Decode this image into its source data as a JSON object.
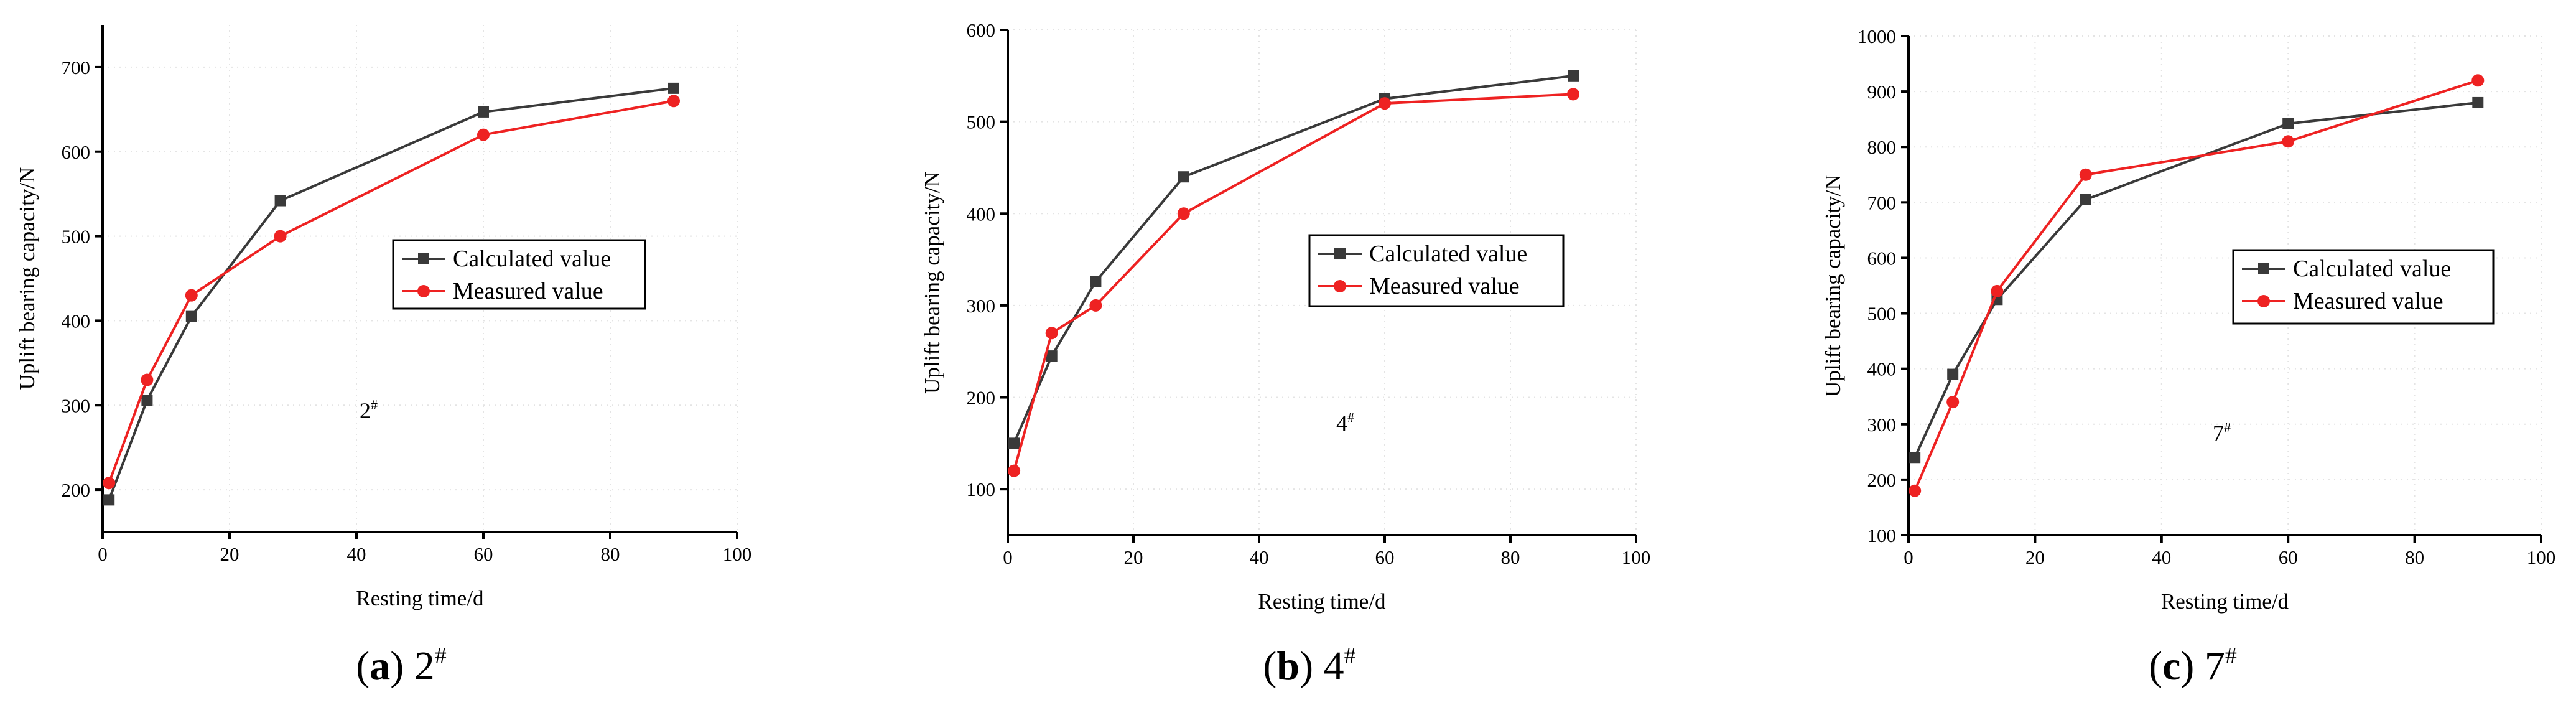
{
  "colors": {
    "calculated": "#3a3a3a",
    "measured": "#ee2222"
  },
  "chart_data": [
    {
      "type": "line",
      "caption_letter": "a",
      "caption_title": "2",
      "caption_sup": "#",
      "annotation": "2",
      "annotation_sup": "#",
      "xlabel": "Resting time/d",
      "ylabel": "Uplift bearing capacity/N",
      "xlim": [
        0,
        100
      ],
      "ylim": [
        150,
        750
      ],
      "xticks": [
        0,
        20,
        40,
        60,
        80,
        100
      ],
      "yticks": [
        200,
        300,
        400,
        500,
        600,
        700
      ],
      "grid": true,
      "legend_position": "center",
      "series": [
        {
          "name": "Calculated value",
          "color_key": "calculated",
          "marker": "square",
          "x": [
            1,
            7,
            14,
            28,
            60,
            90
          ],
          "y": [
            188,
            306,
            405,
            542,
            647,
            675
          ]
        },
        {
          "name": "Measured value",
          "color_key": "measured",
          "marker": "circle",
          "x": [
            1,
            7,
            14,
            28,
            60,
            90
          ],
          "y": [
            208,
            330,
            430,
            500,
            620,
            660
          ]
        }
      ]
    },
    {
      "type": "line",
      "caption_letter": "b",
      "caption_title": "4",
      "caption_sup": "#",
      "annotation": "4",
      "annotation_sup": "#",
      "xlabel": "Resting time/d",
      "ylabel": "Uplift bearing capacity/N",
      "xlim": [
        0,
        100
      ],
      "ylim": [
        50,
        600
      ],
      "xticks": [
        0,
        20,
        40,
        60,
        80,
        100
      ],
      "yticks": [
        100,
        200,
        300,
        400,
        500,
        600
      ],
      "grid": true,
      "legend_position": "right",
      "series": [
        {
          "name": "Calculated value",
          "color_key": "calculated",
          "marker": "square",
          "x": [
            1,
            7,
            14,
            28,
            60,
            90
          ],
          "y": [
            150,
            245,
            326,
            440,
            525,
            550
          ]
        },
        {
          "name": "Measured value",
          "color_key": "measured",
          "marker": "circle",
          "x": [
            1,
            7,
            14,
            28,
            60,
            90
          ],
          "y": [
            120,
            270,
            300,
            400,
            520,
            530
          ]
        }
      ]
    },
    {
      "type": "line",
      "caption_letter": "c",
      "caption_title": "7",
      "caption_sup": "#",
      "annotation": "7",
      "annotation_sup": "#",
      "xlabel": "Resting time/d",
      "ylabel": "Uplift bearing capacity/N",
      "xlim": [
        0,
        100
      ],
      "ylim": [
        100,
        1000
      ],
      "xticks": [
        0,
        20,
        40,
        60,
        80,
        100
      ],
      "yticks": [
        100,
        200,
        300,
        400,
        500,
        600,
        700,
        800,
        900,
        1000
      ],
      "grid": true,
      "legend_position": "center",
      "series": [
        {
          "name": "Calculated value",
          "color_key": "calculated",
          "marker": "square",
          "x": [
            1,
            7,
            14,
            28,
            60,
            90
          ],
          "y": [
            240,
            390,
            525,
            705,
            842,
            880
          ]
        },
        {
          "name": "Measured value",
          "color_key": "measured",
          "marker": "circle",
          "x": [
            1,
            7,
            14,
            28,
            60,
            90
          ],
          "y": [
            180,
            340,
            540,
            750,
            810,
            920
          ]
        }
      ]
    }
  ]
}
